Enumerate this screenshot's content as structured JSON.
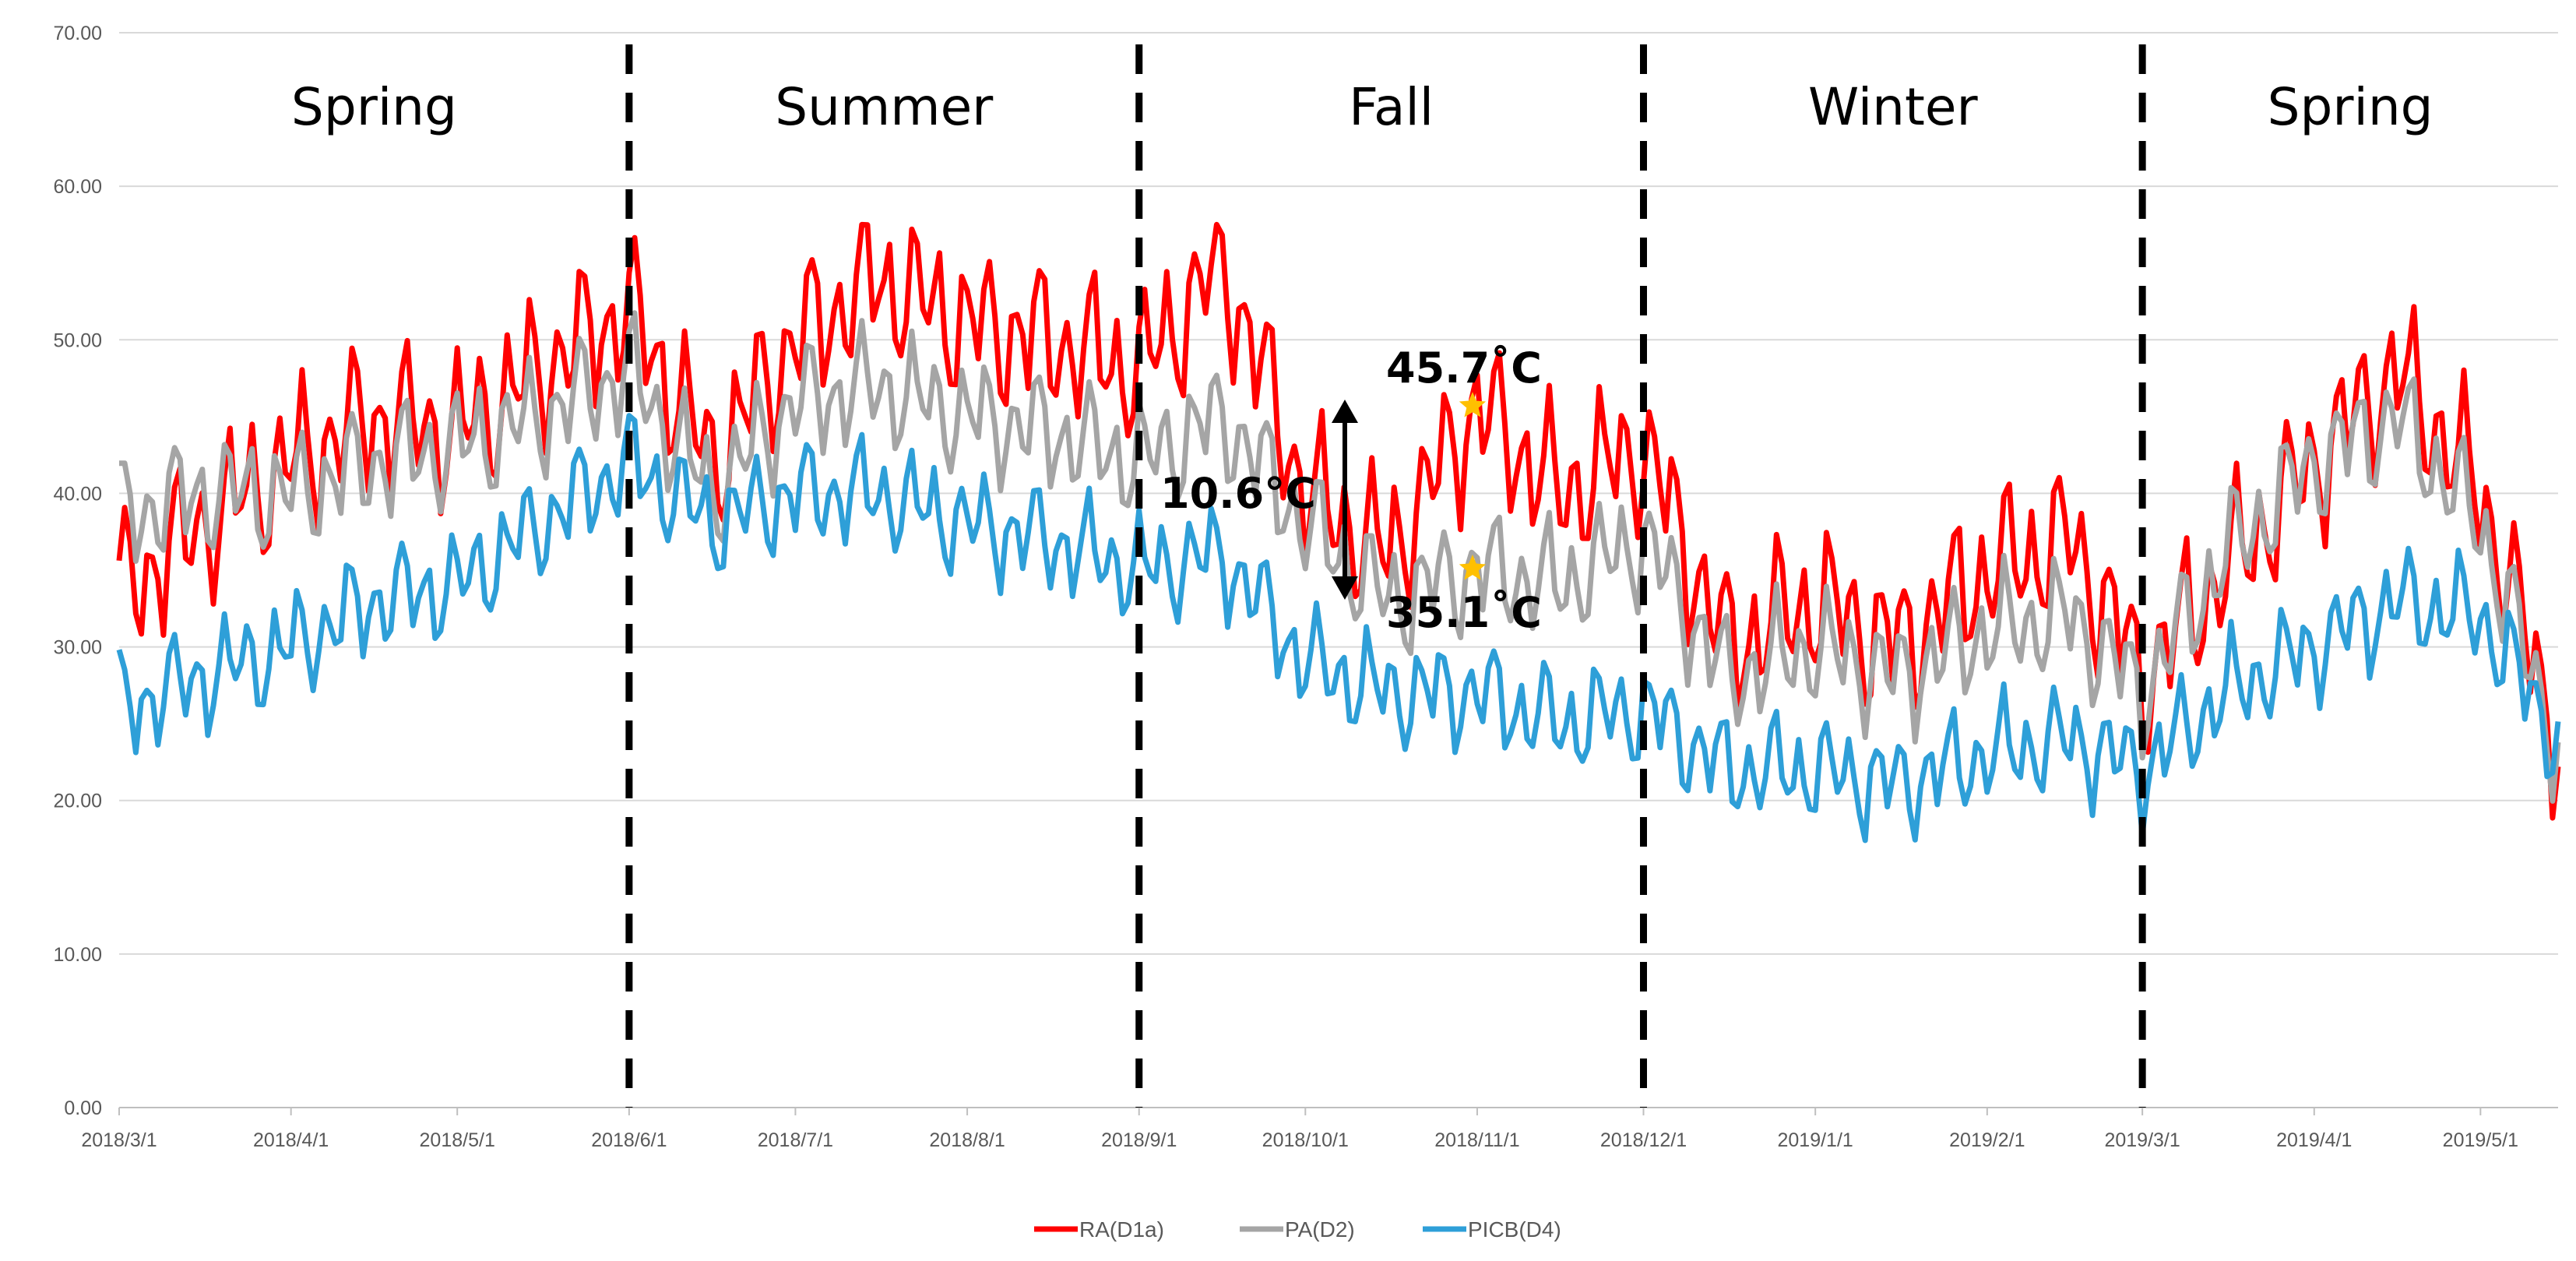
{
  "chart_data": {
    "type": "line",
    "ylim": [
      0,
      70
    ],
    "yticks": [
      "0.00",
      "10.00",
      "20.00",
      "30.00",
      "40.00",
      "50.00",
      "60.00",
      "70.00"
    ],
    "xlim": [
      "2018-03-01",
      "2019-05-15"
    ],
    "xticks": [
      {
        "date": "2018-03-01",
        "label": "2018/3/1"
      },
      {
        "date": "2018-04-01",
        "label": "2018/4/1"
      },
      {
        "date": "2018-05-01",
        "label": "2018/5/1"
      },
      {
        "date": "2018-06-01",
        "label": "2018/6/1"
      },
      {
        "date": "2018-07-01",
        "label": "2018/7/1"
      },
      {
        "date": "2018-08-01",
        "label": "2018/8/1"
      },
      {
        "date": "2018-09-01",
        "label": "2018/9/1"
      },
      {
        "date": "2018-10-01",
        "label": "2018/10/1"
      },
      {
        "date": "2018-11-01",
        "label": "2018/11/1"
      },
      {
        "date": "2018-12-01",
        "label": "2018/12/1"
      },
      {
        "date": "2019-01-01",
        "label": "2019/1/1"
      },
      {
        "date": "2019-02-01",
        "label": "2019/2/1"
      },
      {
        "date": "2019-03-01",
        "label": "2019/3/1"
      },
      {
        "date": "2019-04-01",
        "label": "2019/4/1"
      },
      {
        "date": "2019-05-01",
        "label": "2019/5/1"
      }
    ],
    "grid": true,
    "legend_position": "bottom",
    "season_dividers": [
      "2018-06-01",
      "2018-09-01",
      "2018-12-01",
      "2019-03-01"
    ],
    "seasons": [
      {
        "label": "Spring",
        "start": "2018-03-01",
        "end": "2018-06-01"
      },
      {
        "label": "Summer",
        "start": "2018-06-01",
        "end": "2018-09-01"
      },
      {
        "label": "Fall",
        "start": "2018-09-01",
        "end": "2018-12-01"
      },
      {
        "label": "Winter",
        "start": "2018-12-01",
        "end": "2019-03-01"
      },
      {
        "label": "Spring",
        "start": "2019-03-01",
        "end": "2019-05-15"
      }
    ],
    "annotations": {
      "high": {
        "label": "45.7˚C",
        "date": "2018-11-01",
        "value": 45.7
      },
      "low": {
        "label": "35.1˚C",
        "date": "2018-11-01",
        "value": 35.1
      },
      "difference": {
        "label": "10.6°C",
        "date": "2018-10-14",
        "from": 35.1,
        "to": 45.7
      }
    },
    "series": [
      {
        "name": "RA(D1a)",
        "color": "#ff0000",
        "x": [
          "2018-03-01",
          "2018-03-16",
          "2018-04-01",
          "2018-04-16",
          "2018-05-01",
          "2018-05-16",
          "2018-06-01",
          "2018-06-16",
          "2018-07-01",
          "2018-07-16",
          "2018-08-01",
          "2018-08-16",
          "2018-09-01",
          "2018-09-16",
          "2018-10-01",
          "2018-10-16",
          "2018-11-01",
          "2018-11-16",
          "2018-12-01",
          "2018-12-16",
          "2019-01-01",
          "2019-01-16",
          "2019-02-01",
          "2019-02-16",
          "2019-03-01",
          "2019-03-16",
          "2019-04-01",
          "2019-04-16",
          "2019-05-01",
          "2019-05-15"
        ],
        "values": [
          33.5,
          38,
          42,
          45,
          44,
          48,
          52,
          42,
          50,
          54,
          51,
          50,
          48,
          55,
          40,
          36,
          45.7,
          40,
          43,
          30,
          33,
          30,
          35,
          37,
          28,
          35,
          42,
          48,
          40,
          24
        ]
      },
      {
        "name": "PA(D2)",
        "color": "#a5a5a5",
        "x": [
          "2018-03-01",
          "2018-03-16",
          "2018-04-01",
          "2018-04-16",
          "2018-05-01",
          "2018-05-16",
          "2018-06-01",
          "2018-06-16",
          "2018-07-01",
          "2018-07-16",
          "2018-08-01",
          "2018-08-16",
          "2018-09-01",
          "2018-09-16",
          "2018-10-01",
          "2018-10-16",
          "2018-11-01",
          "2018-11-16",
          "2018-12-01",
          "2018-12-16",
          "2019-01-01",
          "2019-01-16",
          "2019-02-01",
          "2019-02-16",
          "2019-03-01",
          "2019-03-16",
          "2019-04-01",
          "2019-04-16",
          "2019-05-01",
          "2019-05-15"
        ],
        "values": [
          38.5,
          40,
          40,
          42,
          43,
          45,
          48,
          40,
          46,
          47,
          45,
          44,
          42,
          45,
          38,
          33,
          35.1,
          34,
          37,
          28,
          30,
          28,
          31,
          32,
          27,
          36,
          42,
          45,
          38,
          23.5
        ]
      },
      {
        "name": "PICB(D4)",
        "color": "#2e9fd8",
        "x": [
          "2018-03-01",
          "2018-03-16",
          "2018-04-01",
          "2018-04-16",
          "2018-05-01",
          "2018-05-16",
          "2018-06-01",
          "2018-06-16",
          "2018-07-01",
          "2018-07-16",
          "2018-08-01",
          "2018-08-16",
          "2018-09-01",
          "2018-09-16",
          "2018-10-01",
          "2018-10-16",
          "2018-11-01",
          "2018-11-16",
          "2018-12-01",
          "2018-12-16",
          "2019-01-01",
          "2019-01-16",
          "2019-02-01",
          "2019-02-16",
          "2019-03-01",
          "2019-03-16",
          "2019-04-01",
          "2019-04-16",
          "2019-05-01",
          "2019-05-15"
        ],
        "values": [
          26,
          28,
          30,
          33,
          34,
          38,
          42,
          38,
          40,
          40,
          38,
          37,
          35,
          36,
          29,
          27,
          27,
          25,
          26,
          22,
          22,
          21,
          23,
          24,
          22,
          27,
          30,
          33,
          32,
          24
        ]
      }
    ]
  }
}
